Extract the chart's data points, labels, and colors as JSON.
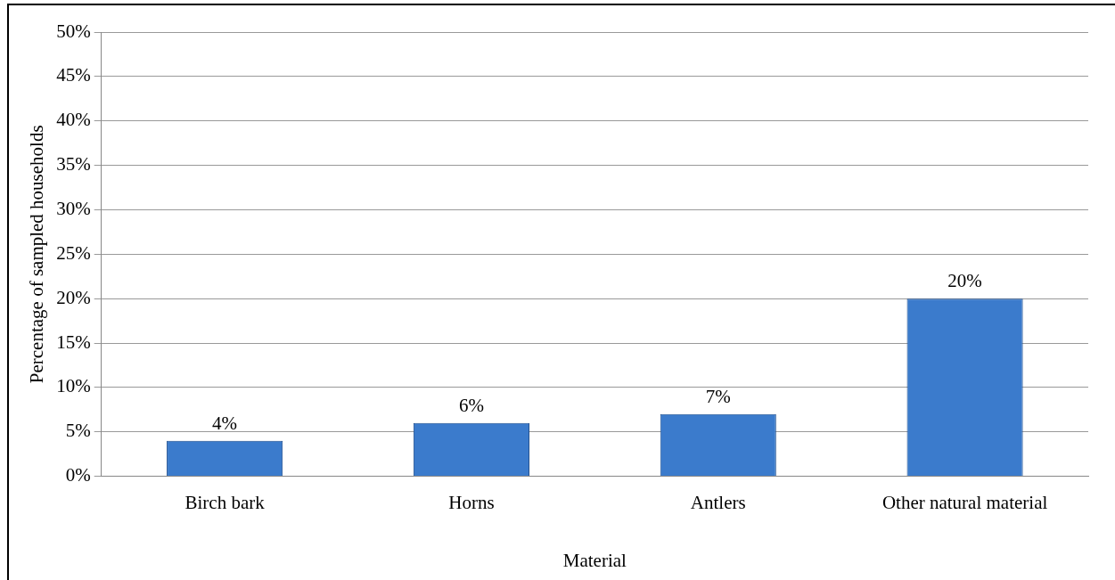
{
  "chart_data": {
    "type": "bar",
    "xlabel": "Material",
    "ylabel": "Percentage of sampled households",
    "categories": [
      "Birch bark",
      "Horns",
      "Antlers",
      "Other natural material"
    ],
    "values": [
      4,
      6,
      7,
      20
    ],
    "color": "#3b7bcc",
    "data_labels": true,
    "value_labels": [
      "4%",
      "6%",
      "7%",
      "20%"
    ],
    "ylim": [
      0,
      50
    ],
    "yticks": [
      {
        "value": 0,
        "label": "0%"
      },
      {
        "value": 5,
        "label": "5%"
      },
      {
        "value": 10,
        "label": "10%"
      },
      {
        "value": 15,
        "label": "15%"
      },
      {
        "value": 20,
        "label": "20%"
      },
      {
        "value": 25,
        "label": "25%"
      },
      {
        "value": 30,
        "label": "30%"
      },
      {
        "value": 35,
        "label": "35%"
      },
      {
        "value": 40,
        "label": "40%"
      },
      {
        "value": 45,
        "label": "45%"
      },
      {
        "value": 50,
        "label": "50%"
      }
    ],
    "grid": "y",
    "legend": false
  }
}
